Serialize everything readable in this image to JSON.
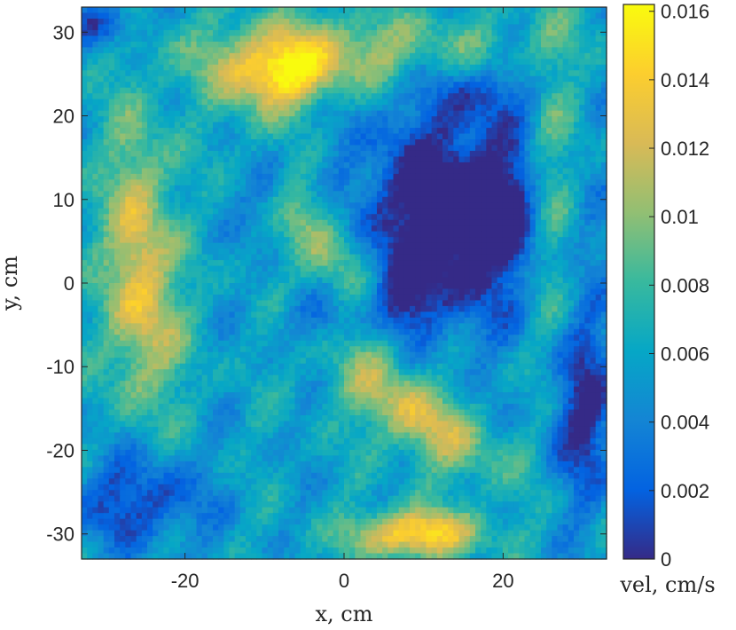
{
  "chart_data": {
    "type": "heatmap",
    "title": "",
    "xlabel": "x, cm",
    "ylabel": "y, cm",
    "xlim": [
      -33,
      33
    ],
    "ylim": [
      -33,
      33
    ],
    "xticks": [
      -20,
      0,
      20
    ],
    "xtick_labels": [
      "-20",
      "0",
      "20"
    ],
    "yticks": [
      -30,
      -20,
      -10,
      0,
      10,
      20,
      30
    ],
    "ytick_labels": [
      "-30",
      "-20",
      "-10",
      "0",
      "10",
      "20",
      "30"
    ],
    "grid": false,
    "colorbar": {
      "label": "vel, cm/s",
      "range": [
        0,
        0.0162
      ],
      "ticks": [
        0,
        0.002,
        0.004,
        0.006,
        0.008,
        0.01,
        0.012,
        0.014,
        0.016
      ],
      "tick_labels": [
        "0",
        "0.002",
        "0.004",
        "0.006",
        "0.008",
        "0.01",
        "0.012",
        "0.014",
        "0.016"
      ],
      "colormap": "parula",
      "colormap_stops": [
        "#352a87",
        "#0363e1",
        "#1485d4",
        "#06a7c6",
        "#38b99e",
        "#92bf73",
        "#d9ba56",
        "#fcce2e",
        "#f9fb0e"
      ]
    },
    "features": [
      {
        "x": -8,
        "y": 25,
        "sx": 5,
        "sy": 3,
        "v": 0.0085
      },
      {
        "x": 2,
        "y": 28,
        "sx": 14,
        "sy": 3.2,
        "v": 0.0045
      },
      {
        "x": -26,
        "y": 5,
        "sx": 2.8,
        "sy": 11,
        "v": 0.0065
      },
      {
        "x": -24,
        "y": -6,
        "sx": 3.5,
        "sy": 7,
        "v": 0.003
      },
      {
        "x": -3,
        "y": 5,
        "sx": 3,
        "sy": 11,
        "v": 0.0055,
        "rot": -0.55
      },
      {
        "x": 9,
        "y": -16,
        "sx": 8,
        "sy": 3,
        "v": 0.0062,
        "rot": 0.55
      },
      {
        "x": 9,
        "y": -30,
        "sx": 5.5,
        "sy": 2,
        "v": 0.0095
      },
      {
        "x": 26,
        "y": 10,
        "sx": 2.5,
        "sy": 14,
        "v": 0.0045
      },
      {
        "x": 14,
        "y": 8,
        "sx": 9,
        "sy": 9,
        "v": -0.0085
      },
      {
        "x": 18,
        "y": 9,
        "sx": 3.5,
        "sy": 3.5,
        "v": -0.003
      },
      {
        "x": -9,
        "y": 12,
        "sx": 2.5,
        "sy": 4,
        "v": -0.0045
      },
      {
        "x": -2,
        "y": -4,
        "sx": 4,
        "sy": 2.5,
        "v": -0.003
      },
      {
        "x": 7,
        "y": -2,
        "sx": 3,
        "sy": 3,
        "v": -0.004
      },
      {
        "x": -26,
        "y": -26,
        "sx": 6,
        "sy": 4,
        "v": -0.005
      },
      {
        "x": 30,
        "y": -15,
        "sx": 3,
        "sy": 8,
        "v": -0.006
      },
      {
        "x": -30,
        "y": 31,
        "sx": 3,
        "sy": 2,
        "v": -0.005
      },
      {
        "x": 18,
        "y": 23,
        "sx": 6,
        "sy": 2.5,
        "v": -0.003
      }
    ]
  }
}
